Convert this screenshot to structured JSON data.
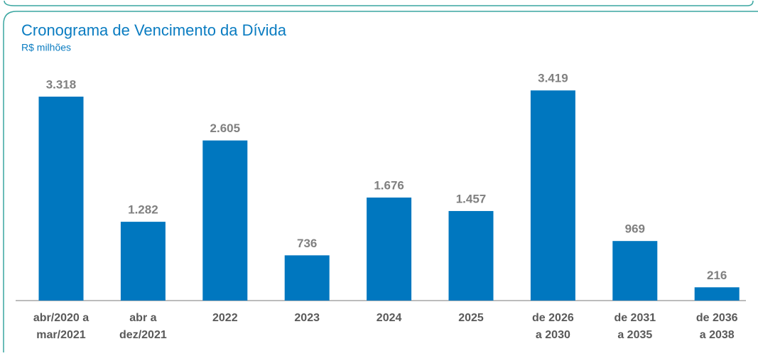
{
  "chart_data": {
    "type": "bar",
    "title": "Cronograma de Vencimento da Dívida",
    "subtitle": "R$ milhões",
    "categories": [
      [
        "abr/2020 a",
        "mar/2021"
      ],
      [
        "abr a",
        "dez/2021"
      ],
      [
        "2022"
      ],
      [
        "2023"
      ],
      [
        "2024"
      ],
      [
        "2025"
      ],
      [
        "de 2026",
        "a 2030"
      ],
      [
        "de 2031",
        "a 2035"
      ],
      [
        "de 2036",
        "a 2038"
      ]
    ],
    "values": [
      3318,
      1282,
      2605,
      736,
      1676,
      1457,
      3419,
      969,
      216
    ],
    "value_labels": [
      "3.318",
      "1.282",
      "2.605",
      "736",
      "1.676",
      "1.457",
      "3.419",
      "969",
      "216"
    ],
    "color": "#0077bf"
  }
}
